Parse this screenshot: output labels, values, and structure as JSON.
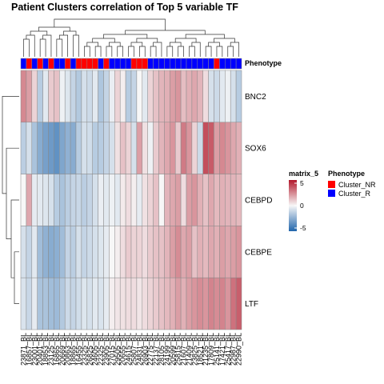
{
  "chart_data": {
    "type": "heatmap",
    "title": "Patient Clusters correlation of Top 5 variable TF",
    "rows": [
      "BNC2",
      "SOX6",
      "CEBPD",
      "CEBPE",
      "LTF"
    ],
    "columns": [
      "23871_BL",
      "16857_BL",
      "23001_BL",
      "20401_BL",
      "18853_BL",
      "23125_BL",
      "16865_BL",
      "20669_BL",
      "20863_BL",
      "18865_BL",
      "16455_BL",
      "23325_BL",
      "26825_BL",
      "24605_BL",
      "22325_BL",
      "23905_BL",
      "27015_BL",
      "29505_BL",
      "20655_BL",
      "24615_BL",
      "25807_BL",
      "24831_BL",
      "26903_BL",
      "22775_BL",
      "22137_BL",
      "28105_BL",
      "24199_BL",
      "20599_BL",
      "25815_BL",
      "21607_BL",
      "21409_BL",
      "23825_BL",
      "18521_BL",
      "21235_BL",
      "17809_BL",
      "25141_BL",
      "17421_BL",
      "25417_BL",
      "22987_BL",
      "22990_BL"
    ],
    "phenotype": [
      "R",
      "NR",
      "R",
      "NR",
      "R",
      "NR",
      "R",
      "R",
      "NR",
      "R",
      "NR",
      "NR",
      "NR",
      "NR",
      "R",
      "NR",
      "R",
      "R",
      "R",
      "R",
      "NR",
      "NR",
      "NR",
      "R",
      "R",
      "R",
      "R",
      "R",
      "R",
      "R",
      "R",
      "R",
      "R",
      "R",
      "R",
      "NR",
      "R",
      "R",
      "R",
      "R"
    ],
    "values": [
      [
        2.5,
        2.0,
        0.8,
        -1.5,
        -0.5,
        1.0,
        1.2,
        -0.2,
        -0.6,
        -1.2,
        -1.6,
        -0.8,
        -1.0,
        -0.5,
        -1.7,
        -1.2,
        -0.3,
        0.8,
        0.2,
        -1.5,
        -1.2,
        0.0,
        -0.5,
        0.8,
        1.2,
        1.5,
        1.6,
        2.0,
        2.2,
        1.3,
        1.6,
        1.8,
        1.5,
        0.6,
        -0.8,
        -1.0,
        -0.5,
        -0.2,
        -0.8,
        -1.5
      ],
      [
        -1.4,
        -0.8,
        -1.8,
        -2.6,
        -3.0,
        -3.2,
        -3.5,
        -2.8,
        -2.4,
        -2.6,
        -1.5,
        -0.8,
        -0.9,
        -1.5,
        -1.5,
        -1.2,
        -0.8,
        0.5,
        1.2,
        0.8,
        -0.8,
        2.0,
        0.5,
        -0.2,
        1.0,
        1.5,
        1.8,
        2.2,
        1.0,
        2.8,
        2.2,
        0.8,
        -1.0,
        3.8,
        3.5,
        2.0,
        2.5,
        2.2,
        1.8,
        1.6
      ],
      [
        0.0,
        1.8,
        -0.4,
        -0.5,
        -0.6,
        -0.8,
        -1.5,
        -1.8,
        -1.4,
        -1.2,
        -1.1,
        -1.4,
        -1.2,
        -0.8,
        -0.3,
        -0.5,
        -0.2,
        -0.5,
        0.3,
        0.6,
        0.2,
        -0.4,
        0.5,
        0.8,
        1.2,
        0.0,
        1.5,
        1.8,
        2.0,
        0.6,
        2.0,
        2.2,
        1.6,
        1.2,
        1.8,
        1.4,
        1.6,
        1.5,
        1.5,
        1.4
      ],
      [
        -0.8,
        -1.2,
        -0.5,
        -2.0,
        -2.4,
        -2.6,
        -2.5,
        -2.0,
        -1.2,
        -1.4,
        -0.8,
        -1.2,
        -1.0,
        -0.8,
        -0.6,
        -0.4,
        0.0,
        0.2,
        0.6,
        1.0,
        0.8,
        0.8,
        0.6,
        1.0,
        1.2,
        1.2,
        1.5,
        2.0,
        2.4,
        1.8,
        2.0,
        1.2,
        1.6,
        1.4,
        1.8,
        1.6,
        2.0,
        1.8,
        2.0,
        2.2
      ],
      [
        -0.7,
        -1.1,
        -0.4,
        -1.8,
        -1.8,
        -2.0,
        -2.1,
        -1.6,
        -1.0,
        -1.2,
        -0.9,
        -0.6,
        -0.8,
        -0.5,
        -0.7,
        -0.4,
        0.2,
        0.4,
        0.5,
        0.6,
        0.6,
        0.4,
        0.6,
        0.8,
        1.0,
        1.2,
        1.4,
        1.6,
        2.0,
        1.6,
        2.0,
        2.2,
        2.4,
        2.2,
        2.6,
        2.4,
        2.6,
        2.2,
        3.0,
        3.4
      ]
    ],
    "color_scale": {
      "min": -5,
      "mid": 0,
      "max": 5,
      "low": "#2166ac",
      "mid_color": "#f7f7f7",
      "high": "#b2182b"
    },
    "legends": {
      "matrix": {
        "title": "matrix_5",
        "ticks": [
          "5",
          "0",
          "-5"
        ]
      },
      "phenotype": {
        "title": "Phenotype",
        "items": [
          {
            "label": "Cluster_NR",
            "color": "#ff0000"
          },
          {
            "label": "Cluster_R",
            "color": "#0000ff"
          }
        ]
      }
    },
    "annotation_label": "Phenotype"
  }
}
